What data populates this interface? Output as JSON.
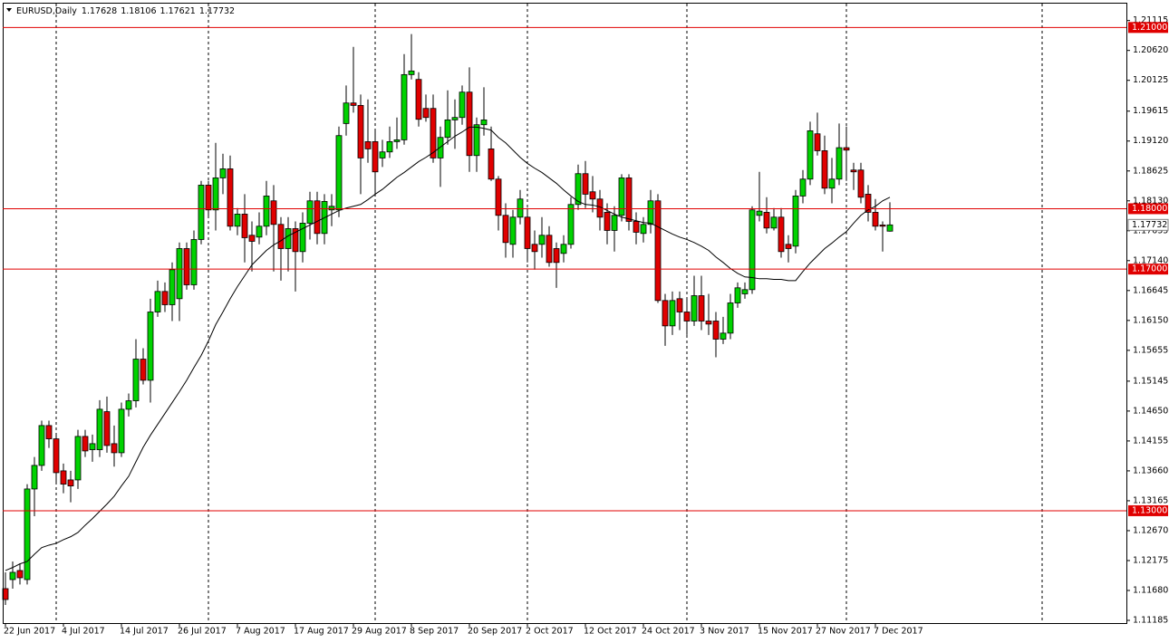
{
  "chart_data": {
    "type": "candlestick",
    "title": "EURUSD,Daily",
    "categories": [
      "22 Jun 2017",
      null,
      null,
      null,
      null,
      null,
      null,
      null,
      "4 Jul 2017",
      null,
      null,
      null,
      null,
      null,
      null,
      null,
      "14 Jul 2017",
      null,
      null,
      null,
      null,
      null,
      null,
      null,
      "26 Jul 2017",
      null,
      null,
      null,
      null,
      null,
      null,
      null,
      "7 Aug 2017",
      null,
      null,
      null,
      null,
      null,
      null,
      null,
      "17 Aug 2017",
      null,
      null,
      null,
      null,
      null,
      null,
      null,
      "29 Aug 2017",
      null,
      null,
      null,
      null,
      null,
      null,
      null,
      "8 Sep 2017",
      null,
      null,
      null,
      null,
      null,
      null,
      null,
      "20 Sep 2017",
      null,
      null,
      null,
      null,
      null,
      null,
      null,
      "2 Oct 2017",
      null,
      null,
      null,
      null,
      null,
      null,
      null,
      "12 Oct 2017",
      null,
      null,
      null,
      null,
      null,
      null,
      null,
      "24 Oct 2017",
      null,
      null,
      null,
      null,
      null,
      null,
      null,
      "3 Nov 2017",
      null,
      null,
      null,
      null,
      null,
      null,
      null,
      "15 Nov 2017",
      null,
      null,
      null,
      null,
      null,
      null,
      null,
      "27 Nov 2017",
      null,
      null,
      null,
      null,
      null,
      null,
      null,
      "7 Dec 2017",
      null,
      null
    ],
    "open": [
      1.1171,
      1.1186,
      1.1201,
      1.1186,
      1.1336,
      1.1375,
      1.1441,
      1.1419,
      1.1366,
      1.1351,
      1.1351,
      1.1423,
      1.1401,
      1.1401,
      1.1464,
      1.1411,
      1.1396,
      1.1468,
      1.1482,
      1.1551,
      1.1516,
      1.1629,
      1.1663,
      1.1641,
      1.1651,
      1.1734,
      1.1674,
      1.1749,
      1.1839,
      1.1798,
      1.1851,
      1.1866,
      1.1771,
      1.1791,
      1.1756,
      1.1753,
      1.1771,
      1.1813,
      1.1774,
      1.1734,
      1.1767,
      1.1729,
      1.1776,
      1.1813,
      1.1759,
      1.1798,
      1.1798,
      1.1941,
      1.1975,
      1.1971,
      1.1911,
      1.1911,
      1.1884,
      1.1894,
      1.1911,
      1.1914,
      1.2022,
      1.2014,
      1.1966,
      1.1966,
      1.1884,
      1.1918,
      1.1947,
      1.1951,
      1.1993,
      1.1888,
      1.1939,
      1.1899,
      1.1849,
      1.1789,
      1.1741,
      1.1786,
      1.1786,
      1.1741,
      1.1741,
      1.1756,
      1.1734,
      1.1726,
      1.1741,
      1.1807,
      1.1858,
      1.1828,
      1.1816,
      1.1794,
      1.1764,
      1.1789,
      1.1851,
      1.1779,
      1.1759,
      1.1774,
      1.1813,
      1.1648,
      1.1606,
      1.1651,
      1.1629,
      1.1614,
      1.1656,
      1.1614,
      1.1614,
      1.1584,
      1.1594,
      1.1644,
      1.1659,
      1.1666,
      1.1789,
      1.1794,
      1.1768,
      1.1786,
      1.1741,
      1.1738,
      1.1821,
      1.1849,
      1.1924,
      1.1896,
      1.1834,
      1.1849,
      1.1901,
      1.1864,
      1.1864,
      1.1824,
      1.1794,
      1.1773,
      1.17628
    ],
    "high": [
      1.1198,
      1.1216,
      1.1213,
      1.1344,
      1.1389,
      1.1449,
      1.1449,
      1.1426,
      1.1378,
      1.1366,
      1.1434,
      1.1434,
      1.1426,
      1.1483,
      1.1489,
      1.1441,
      1.1479,
      1.1494,
      1.1584,
      1.1569,
      1.1651,
      1.1681,
      1.1678,
      1.1711,
      1.1744,
      1.1744,
      1.1764,
      1.1846,
      1.1846,
      1.1909,
      1.1891,
      1.1888,
      1.1801,
      1.1824,
      1.1779,
      1.1794,
      1.1846,
      1.1839,
      1.1786,
      1.1786,
      1.1779,
      1.1794,
      1.1828,
      1.1828,
      1.1824,
      1.1824,
      1.1936,
      1.2004,
      1.2068,
      1.1989,
      1.1981,
      1.1929,
      1.1914,
      1.1936,
      1.1951,
      1.2056,
      1.2089,
      1.2026,
      1.1989,
      1.1989,
      1.1936,
      1.1996,
      1.1981,
      1.2004,
      1.2034,
      1.1951,
      1.2001,
      1.1936,
      1.1854,
      1.1809,
      1.1798,
      1.1831,
      1.1801,
      1.1764,
      1.1786,
      1.1771,
      1.1744,
      1.1756,
      1.1819,
      1.1873,
      1.1879,
      1.1854,
      1.1831,
      1.1809,
      1.1804,
      1.1857,
      1.1857,
      1.1794,
      1.1786,
      1.1831,
      1.1824,
      1.1659,
      1.1663,
      1.1663,
      1.1651,
      1.1689,
      1.1689,
      1.1659,
      1.1629,
      1.1621,
      1.1659,
      1.1678,
      1.1678,
      1.1804,
      1.1861,
      1.1819,
      1.1801,
      1.1801,
      1.1756,
      1.1831,
      1.1864,
      1.1944,
      1.1959,
      1.1921,
      1.1884,
      1.1941,
      1.1936,
      1.1876,
      1.1876,
      1.1839,
      1.1816,
      1.1779,
      1.18106
    ],
    "low": [
      1.1144,
      1.1171,
      1.1178,
      1.1178,
      1.1291,
      1.1366,
      1.1404,
      1.1344,
      1.1329,
      1.1314,
      1.1336,
      1.1389,
      1.1381,
      1.1389,
      1.1396,
      1.1373,
      1.1389,
      1.1456,
      1.1471,
      1.1509,
      1.1479,
      1.1621,
      1.1629,
      1.1614,
      1.1614,
      1.1666,
      1.1666,
      1.1741,
      1.1786,
      1.1764,
      1.1824,
      1.1764,
      1.1756,
      1.1711,
      1.1696,
      1.1741,
      1.1756,
      1.1696,
      1.1681,
      1.1696,
      1.1663,
      1.1711,
      1.1749,
      1.1741,
      1.1741,
      1.1771,
      1.1786,
      1.1921,
      1.1959,
      1.1824,
      1.1876,
      1.1824,
      1.1869,
      1.1884,
      1.1899,
      1.1906,
      1.2014,
      1.1936,
      1.1944,
      1.1876,
      1.1836,
      1.1906,
      1.1899,
      1.1939,
      1.1861,
      1.1861,
      1.1921,
      1.1846,
      1.1764,
      1.1719,
      1.1719,
      1.1774,
      1.1711,
      1.1699,
      1.1719,
      1.1704,
      1.1669,
      1.1711,
      1.1734,
      1.1798,
      1.1801,
      1.1794,
      1.1764,
      1.1741,
      1.1729,
      1.1779,
      1.1764,
      1.1741,
      1.1744,
      1.1759,
      1.1644,
      1.1573,
      1.1591,
      1.1599,
      1.1591,
      1.1606,
      1.1599,
      1.1591,
      1.1554,
      1.1576,
      1.1584,
      1.1636,
      1.1651,
      1.1659,
      1.1779,
      1.1759,
      1.1764,
      1.1719,
      1.1711,
      1.1726,
      1.1809,
      1.1839,
      1.1888,
      1.1824,
      1.1809,
      1.1839,
      1.1846,
      1.1831,
      1.1809,
      1.1779,
      1.1764,
      1.1729,
      1.17621
    ],
    "close": [
      1.1153,
      1.1198,
      1.1189,
      1.1336,
      1.1375,
      1.1441,
      1.1419,
      1.1363,
      1.1344,
      1.1341,
      1.1423,
      1.1399,
      1.1411,
      1.1468,
      1.1408,
      1.1396,
      1.1468,
      1.1482,
      1.1551,
      1.1516,
      1.1629,
      1.1663,
      1.1641,
      1.1699,
      1.1734,
      1.1674,
      1.1749,
      1.1839,
      1.1798,
      1.1851,
      1.1866,
      1.1771,
      1.1791,
      1.1752,
      1.1746,
      1.1771,
      1.1821,
      1.1774,
      1.1734,
      1.1767,
      1.1729,
      1.1776,
      1.1813,
      1.1759,
      1.1812,
      1.1804,
      1.1921,
      1.1975,
      1.1971,
      1.1884,
      1.1899,
      1.1861,
      1.1894,
      1.1911,
      1.1914,
      1.2022,
      1.2028,
      1.1948,
      1.1951,
      1.1884,
      1.1918,
      1.1947,
      1.1951,
      1.1993,
      1.1888,
      1.1939,
      1.1947,
      1.1849,
      1.1789,
      1.1744,
      1.1786,
      1.1816,
      1.1734,
      1.1729,
      1.1756,
      1.1711,
      1.1711,
      1.1741,
      1.1807,
      1.1858,
      1.1824,
      1.1816,
      1.1786,
      1.1764,
      1.1789,
      1.1851,
      1.1779,
      1.1761,
      1.1774,
      1.1813,
      1.1648,
      1.1606,
      1.1648,
      1.1629,
      1.1614,
      1.1656,
      1.1614,
      1.1609,
      1.1584,
      1.1594,
      1.1644,
      1.1669,
      1.1666,
      1.1798,
      1.1796,
      1.1768,
      1.1786,
      1.1729,
      1.1734,
      1.1821,
      1.1849,
      1.1929,
      1.1896,
      1.1834,
      1.1849,
      1.1901,
      1.1897,
      1.1861,
      1.1819,
      1.1794,
      1.1771,
      1.1771,
      1.17732
    ],
    "up_color": "#00d200",
    "down_color": "#e00000",
    "moving_average": {
      "color": "#000000",
      "values": [
        1.1201,
        1.1206,
        1.1212,
        1.1216,
        1.1228,
        1.1239,
        1.1243,
        1.1246,
        1.1252,
        1.1257,
        1.1264,
        1.1276,
        1.1287,
        1.1299,
        1.1311,
        1.1324,
        1.1341,
        1.1357,
        1.1381,
        1.1405,
        1.1425,
        1.1443,
        1.1461,
        1.1479,
        1.1497,
        1.1516,
        1.1537,
        1.1557,
        1.1581,
        1.1608,
        1.1629,
        1.1651,
        1.1671,
        1.1689,
        1.1707,
        1.1719,
        1.1731,
        1.174,
        1.1747,
        1.1755,
        1.1761,
        1.1767,
        1.1773,
        1.1779,
        1.1785,
        1.1791,
        1.1797,
        1.1801,
        1.1804,
        1.1807,
        1.1815,
        1.1824,
        1.1832,
        1.1842,
        1.1852,
        1.186,
        1.1869,
        1.1878,
        1.1885,
        1.1893,
        1.1902,
        1.1911,
        1.192,
        1.1927,
        1.1935,
        1.1935,
        1.1933,
        1.193,
        1.1918,
        1.1909,
        1.1897,
        1.1885,
        1.1875,
        1.1867,
        1.186,
        1.1851,
        1.1842,
        1.1831,
        1.1821,
        1.1812,
        1.1807,
        1.1806,
        1.1803,
        1.1797,
        1.1791,
        1.1786,
        1.1783,
        1.178,
        1.1777,
        1.1776,
        1.177,
        1.1764,
        1.1758,
        1.1753,
        1.1749,
        1.1744,
        1.1738,
        1.1731,
        1.172,
        1.1711,
        1.1701,
        1.1693,
        1.1687,
        1.1686,
        1.1684,
        1.1684,
        1.1683,
        1.1683,
        1.1681,
        1.1681,
        1.1696,
        1.171,
        1.1722,
        1.1734,
        1.1743,
        1.1753,
        1.1762,
        1.1776,
        1.1789,
        1.1798,
        1.1804,
        1.1813,
        1.1819
      ]
    },
    "levels": {
      "color": "#e00000",
      "lines": [
        {
          "value": 1.21,
          "label": "1.21000"
        },
        {
          "value": 1.18,
          "label": "1.18000"
        },
        {
          "value": 1.17,
          "label": "1.17000"
        },
        {
          "value": 1.13,
          "label": "1.13000"
        }
      ]
    },
    "ylim": [
      1.1114,
      1.2141
    ],
    "yticks": [
      1.21115,
      {
        "value": 1.2062,
        "label": "1.20620"
      },
      1.20125,
      1.19615,
      {
        "value": 1.1912,
        "label": "1.19120"
      },
      1.18625,
      {
        "value": 1.1813,
        "label": "1.18130"
      },
      1.17635,
      {
        "value": 1.1714,
        "label": "1.17140"
      },
      1.16645,
      {
        "value": 1.1615,
        "label": "1.16150"
      },
      1.15655,
      1.15145,
      {
        "value": 1.1465,
        "label": "1.14650"
      },
      1.14155,
      {
        "value": 1.1366,
        "label": "1.13660"
      },
      1.13165,
      {
        "value": 1.1267,
        "label": "1.12670"
      },
      1.12175,
      {
        "value": 1.1168,
        "label": "1.11680"
      },
      1.11185
    ]
  }
}
